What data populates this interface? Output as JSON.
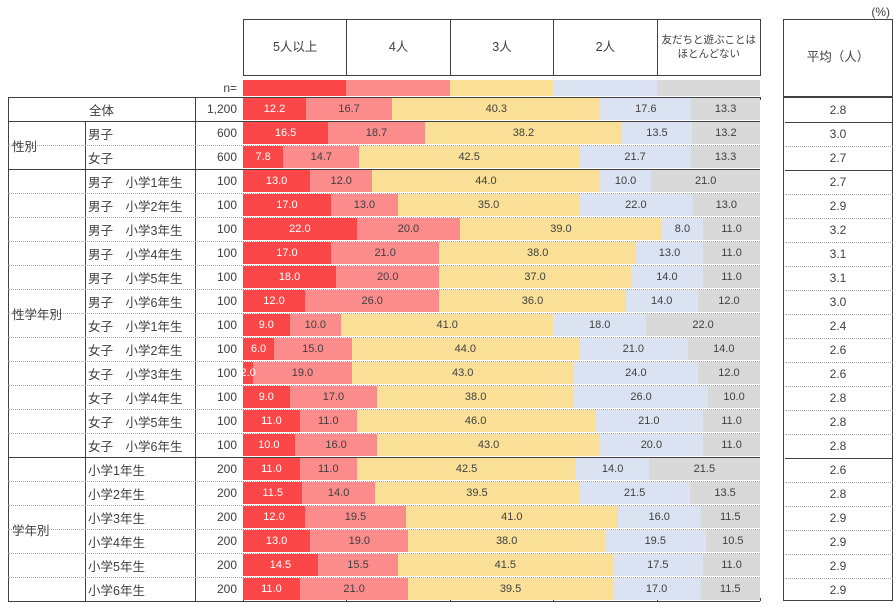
{
  "unit_label": "(%)",
  "n_label": "n=",
  "average_header": "平均（人）",
  "legend": [
    {
      "label": "5人以上",
      "color": "#fb4747",
      "text_color": "#ffffff"
    },
    {
      "label": "4人",
      "color": "#fc8b8b",
      "text_color": "#3f3f3f"
    },
    {
      "label": "3人",
      "color": "#fae096",
      "text_color": "#3f3f3f"
    },
    {
      "label": "2人",
      "color": "#dbe3f2",
      "text_color": "#3f3f3f"
    },
    {
      "label": "友だちと遊ぶことは\nほとんどない",
      "color": "#d9d9d9",
      "text_color": "#3f3f3f"
    }
  ],
  "groups": [
    {
      "label": "",
      "start": 0,
      "count": 1
    },
    {
      "label": "性別",
      "start": 1,
      "count": 2
    },
    {
      "label": "性学年別",
      "start": 3,
      "count": 12
    },
    {
      "label": "学年別",
      "start": 15,
      "count": 6
    }
  ],
  "rows": [
    {
      "label": "全体",
      "n": "1,200",
      "cells": [
        "12.2",
        "16.7",
        "40.3",
        "17.6",
        "13.3"
      ],
      "avg": "2.8"
    },
    {
      "label": "男子",
      "n": "600",
      "cells": [
        "16.5",
        "18.7",
        "38.2",
        "13.5",
        "13.2"
      ],
      "avg": "3.0"
    },
    {
      "label": "女子",
      "n": "600",
      "cells": [
        "7.8",
        "14.7",
        "42.5",
        "21.7",
        "13.3"
      ],
      "avg": "2.7"
    },
    {
      "label": "男子　小学1年生",
      "n": "100",
      "cells": [
        "13.0",
        "12.0",
        "44.0",
        "10.0",
        "21.0"
      ],
      "avg": "2.7"
    },
    {
      "label": "男子　小学2年生",
      "n": "100",
      "cells": [
        "17.0",
        "13.0",
        "35.0",
        "22.0",
        "13.0"
      ],
      "avg": "2.9"
    },
    {
      "label": "男子　小学3年生",
      "n": "100",
      "cells": [
        "22.0",
        "20.0",
        "39.0",
        "8.0",
        "11.0"
      ],
      "avg": "3.2"
    },
    {
      "label": "男子　小学4年生",
      "n": "100",
      "cells": [
        "17.0",
        "21.0",
        "38.0",
        "13.0",
        "11.0"
      ],
      "avg": "3.1"
    },
    {
      "label": "男子　小学5年生",
      "n": "100",
      "cells": [
        "18.0",
        "20.0",
        "37.0",
        "14.0",
        "11.0"
      ],
      "avg": "3.1"
    },
    {
      "label": "男子　小学6年生",
      "n": "100",
      "cells": [
        "12.0",
        "26.0",
        "36.0",
        "14.0",
        "12.0"
      ],
      "avg": "3.0"
    },
    {
      "label": "女子　小学1年生",
      "n": "100",
      "cells": [
        "9.0",
        "10.0",
        "41.0",
        "18.0",
        "22.0"
      ],
      "avg": "2.4"
    },
    {
      "label": "女子　小学2年生",
      "n": "100",
      "cells": [
        "6.0",
        "15.0",
        "44.0",
        "21.0",
        "14.0"
      ],
      "avg": "2.6"
    },
    {
      "label": "女子　小学3年生",
      "n": "100",
      "cells": [
        "2.0",
        "19.0",
        "43.0",
        "24.0",
        "12.0"
      ],
      "avg": "2.6"
    },
    {
      "label": "女子　小学4年生",
      "n": "100",
      "cells": [
        "9.0",
        "17.0",
        "38.0",
        "26.0",
        "10.0"
      ],
      "avg": "2.8"
    },
    {
      "label": "女子　小学5年生",
      "n": "100",
      "cells": [
        "11.0",
        "11.0",
        "46.0",
        "21.0",
        "11.0"
      ],
      "avg": "2.8"
    },
    {
      "label": "女子　小学6年生",
      "n": "100",
      "cells": [
        "10.0",
        "16.0",
        "43.0",
        "20.0",
        "11.0"
      ],
      "avg": "2.8"
    },
    {
      "label": "小学1年生",
      "n": "200",
      "cells": [
        "11.0",
        "11.0",
        "42.5",
        "14.0",
        "21.5"
      ],
      "avg": "2.6"
    },
    {
      "label": "小学2年生",
      "n": "200",
      "cells": [
        "11.5",
        "14.0",
        "39.5",
        "21.5",
        "13.5"
      ],
      "avg": "2.8"
    },
    {
      "label": "小学3年生",
      "n": "200",
      "cells": [
        "12.0",
        "19.5",
        "41.0",
        "16.0",
        "11.5"
      ],
      "avg": "2.9"
    },
    {
      "label": "小学4年生",
      "n": "200",
      "cells": [
        "13.0",
        "19.0",
        "38.0",
        "19.5",
        "10.5"
      ],
      "avg": "2.9"
    },
    {
      "label": "小学5年生",
      "n": "200",
      "cells": [
        "14.5",
        "15.5",
        "41.5",
        "17.5",
        "11.0"
      ],
      "avg": "2.9"
    },
    {
      "label": "小学6年生",
      "n": "200",
      "cells": [
        "11.0",
        "21.0",
        "39.5",
        "17.0",
        "11.5"
      ],
      "avg": "2.9"
    }
  ],
  "chart_data": {
    "type": "bar",
    "stacked": true,
    "orientation": "horizontal",
    "unit": "%",
    "categories": [
      "全体",
      "男子",
      "女子",
      "男子 小学1年生",
      "男子 小学2年生",
      "男子 小学3年生",
      "男子 小学4年生",
      "男子 小学5年生",
      "男子 小学6年生",
      "女子 小学1年生",
      "女子 小学2年生",
      "女子 小学3年生",
      "女子 小学4年生",
      "女子 小学5年生",
      "女子 小学6年生",
      "小学1年生",
      "小学2年生",
      "小学3年生",
      "小学4年生",
      "小学5年生",
      "小学6年生"
    ],
    "n": [
      1200,
      600,
      600,
      100,
      100,
      100,
      100,
      100,
      100,
      100,
      100,
      100,
      100,
      100,
      100,
      200,
      200,
      200,
      200,
      200,
      200
    ],
    "series": [
      {
        "name": "5人以上",
        "values": [
          12.2,
          16.5,
          7.8,
          13.0,
          17.0,
          22.0,
          17.0,
          18.0,
          12.0,
          9.0,
          6.0,
          2.0,
          9.0,
          11.0,
          10.0,
          11.0,
          11.5,
          12.0,
          13.0,
          14.5,
          11.0
        ]
      },
      {
        "name": "4人",
        "values": [
          16.7,
          18.7,
          14.7,
          12.0,
          13.0,
          20.0,
          21.0,
          20.0,
          26.0,
          10.0,
          15.0,
          19.0,
          17.0,
          11.0,
          16.0,
          11.0,
          14.0,
          19.5,
          19.0,
          15.5,
          21.0
        ]
      },
      {
        "name": "3人",
        "values": [
          40.3,
          38.2,
          42.5,
          44.0,
          35.0,
          39.0,
          38.0,
          37.0,
          36.0,
          41.0,
          44.0,
          43.0,
          38.0,
          46.0,
          43.0,
          42.5,
          39.5,
          41.0,
          38.0,
          41.5,
          39.5
        ]
      },
      {
        "name": "2人",
        "values": [
          17.6,
          13.5,
          21.7,
          10.0,
          22.0,
          8.0,
          13.0,
          14.0,
          14.0,
          18.0,
          21.0,
          24.0,
          26.0,
          21.0,
          20.0,
          14.0,
          21.5,
          16.0,
          19.5,
          17.5,
          17.0
        ]
      },
      {
        "name": "友だちと遊ぶことはほとんどない",
        "values": [
          13.3,
          13.2,
          13.3,
          21.0,
          13.0,
          11.0,
          11.0,
          11.0,
          12.0,
          22.0,
          14.0,
          12.0,
          10.0,
          11.0,
          11.0,
          21.5,
          13.5,
          11.5,
          10.5,
          11.0,
          11.5
        ]
      }
    ],
    "averages": {
      "label": "平均（人）",
      "values": [
        2.8,
        3.0,
        2.7,
        2.7,
        2.9,
        3.2,
        3.1,
        3.1,
        3.0,
        2.4,
        2.6,
        2.6,
        2.8,
        2.8,
        2.8,
        2.6,
        2.8,
        2.9,
        2.9,
        2.9,
        2.9
      ]
    },
    "xlim": [
      0,
      100
    ],
    "legend_position": "top",
    "grid": false
  }
}
